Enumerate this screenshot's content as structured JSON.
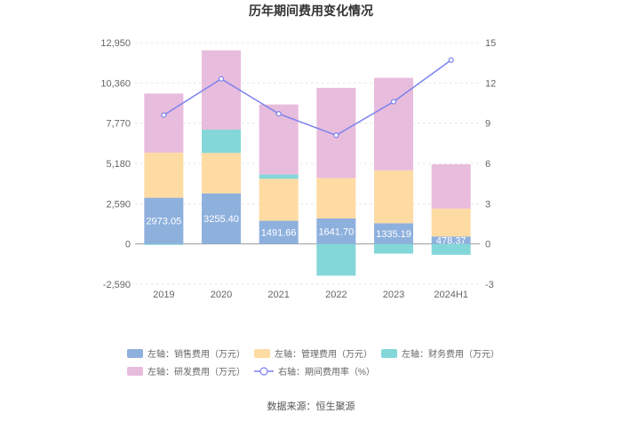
{
  "chart_data": {
    "type": "bar",
    "title": "历年期间费用变化情况",
    "categories": [
      "2019",
      "2020",
      "2021",
      "2022",
      "2023",
      "2024H1"
    ],
    "left_axis": {
      "ticks": [
        "12,950",
        "10,360",
        "7,770",
        "5,180",
        "2,590",
        "0",
        "-2,590"
      ],
      "ylim": [
        -2590,
        12950
      ]
    },
    "right_axis": {
      "ticks": [
        "15",
        "12",
        "9",
        "6",
        "3",
        "0",
        "-3"
      ],
      "ylim": [
        -3,
        15
      ]
    },
    "series": [
      {
        "name": "左轴：销售费用（万元）",
        "color": "#8eb0dd",
        "values": [
          2973.05,
          3255.4,
          1491.66,
          1641.7,
          1335.19,
          478.37
        ]
      },
      {
        "name": "左轴：管理费用（万元）",
        "color": "#fedba3",
        "values": [
          2900,
          2600,
          2700,
          2600,
          3400,
          1800
        ]
      },
      {
        "name": "左轴：财务费用（万元）",
        "color": "#84d7d9",
        "values": [
          -60,
          1500,
          280,
          -2040,
          -620,
          -700
        ]
      },
      {
        "name": "左轴：研发费用（万元）",
        "color": "#e8bcdc",
        "values": [
          3800,
          5100,
          4500,
          5800,
          5950,
          2850
        ]
      }
    ],
    "line_series": {
      "name": "右轴：期间费用率（%）",
      "color": "#7b82ee",
      "values": [
        9.6,
        12.3,
        9.7,
        8.1,
        10.6,
        13.7
      ]
    },
    "data_labels": [
      "2973.05",
      "3255.40",
      "1491.66",
      "1641.70",
      "1335.19",
      "478.37"
    ],
    "source": "数据来源：恒生聚源"
  }
}
